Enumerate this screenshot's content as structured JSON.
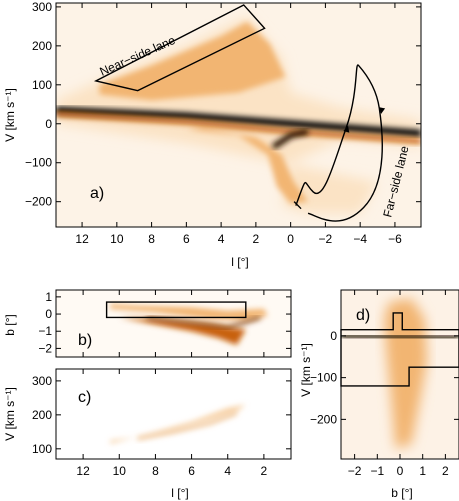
{
  "chart_data": [
    {
      "panel": "a)",
      "type": "heatmap",
      "xlabel": "l [°]",
      "ylabel": "V [km s⁻¹]",
      "xlim": [
        13.5,
        -7.5
      ],
      "ylim": [
        -265,
        310
      ],
      "xticks": [
        12,
        10,
        8,
        6,
        4,
        2,
        0,
        -2,
        -4,
        -6
      ],
      "yticks": [
        -200,
        -100,
        0,
        100,
        200,
        300
      ],
      "annotations": [
        "Near−side lane",
        "Far−side lane"
      ],
      "near_side_lane_box": [
        [
          11.2,
          110
        ],
        [
          8.8,
          85
        ],
        [
          1.5,
          245
        ],
        [
          2.7,
          305
        ]
      ],
      "far_side_lane_curve": [
        [
          -0.3,
          -210
        ],
        [
          -1.0,
          -185
        ],
        [
          -3.2,
          -10
        ],
        [
          -3.9,
          150
        ],
        [
          -4.5,
          135
        ],
        [
          -5.1,
          40
        ],
        [
          -5.5,
          -60
        ],
        [
          -4.2,
          -215
        ],
        [
          -1.0,
          -230
        ]
      ],
      "features": [
        {
          "name": "main-ridge",
          "points": [
            [
              13.5,
              35
            ],
            [
              6,
              20
            ],
            [
              0,
              0
            ],
            [
              -3,
              -10
            ],
            [
              -7.5,
              -25
            ]
          ]
        },
        {
          "name": "upper-arc",
          "points": [
            [
              11,
              110
            ],
            [
              8,
              160
            ],
            [
              4,
              230
            ],
            [
              2.5,
              260
            ],
            [
              1,
              200
            ],
            [
              0,
              130
            ]
          ]
        },
        {
          "name": "lower-arc",
          "points": [
            [
              6,
              -20
            ],
            [
              3,
              -45
            ],
            [
              1,
              -95
            ],
            [
              0.4,
              -170
            ],
            [
              -0.5,
              -205
            ]
          ]
        }
      ]
    },
    {
      "panel": "b)",
      "type": "heatmap",
      "xlabel": "",
      "ylabel": "b [°]",
      "xlim": [
        13.5,
        0.5
      ],
      "ylim": [
        -2.5,
        1.4
      ],
      "yticks": [
        -2,
        -1,
        0,
        1
      ],
      "box": [
        [
          10.7,
          0.7
        ],
        [
          3.0,
          0.7
        ],
        [
          3.0,
          -0.2
        ],
        [
          10.7,
          -0.2
        ]
      ]
    },
    {
      "panel": "c)",
      "type": "heatmap",
      "xlabel": "l [°]",
      "ylabel": "V [km s⁻¹]",
      "xlim": [
        13.5,
        0.5
      ],
      "ylim": [
        70,
        335
      ],
      "xticks": [
        12,
        10,
        8,
        6,
        4,
        2
      ],
      "yticks": [
        100,
        200,
        300
      ]
    },
    {
      "panel": "d)",
      "type": "heatmap",
      "xlabel": "b [°]",
      "ylabel": "V [km s⁻¹]",
      "xlim": [
        -2.6,
        2.6
      ],
      "ylim": [
        -295,
        110
      ],
      "xticks": [
        -2,
        -1,
        0,
        1,
        2
      ],
      "yticks": [
        -200,
        -100,
        0
      ],
      "box": [
        [
          -2.6,
          15
        ],
        [
          -0.3,
          15
        ],
        [
          -0.3,
          55
        ],
        [
          0.1,
          55
        ],
        [
          0.1,
          15
        ],
        [
          2.6,
          15
        ],
        [
          2.6,
          -75
        ],
        [
          0.4,
          -75
        ],
        [
          0.4,
          -120
        ],
        [
          -2.6,
          -120
        ]
      ]
    }
  ],
  "colors": {
    "ink": "#000000",
    "mid": "#c8600a",
    "light": "#f2b572",
    "pale": "#fbe3c5"
  }
}
